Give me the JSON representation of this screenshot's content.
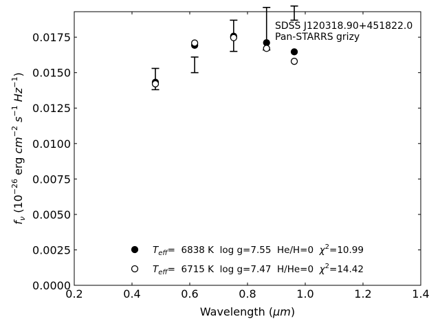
{
  "chart_data": {
    "type": "scatter",
    "xlabel_prefix": "Wavelength (",
    "xlabel_unit": "μm",
    "xlabel_suffix": ")",
    "ylabel_parts": [
      "f",
      "ν",
      " (10",
      "−26",
      " erg ",
      "cm",
      "−2",
      " ",
      "s",
      "−1",
      " ",
      "Hz",
      "−1",
      ")"
    ],
    "xlim": [
      0.2,
      1.4
    ],
    "ylim": [
      0.0,
      0.0193
    ],
    "x_ticks": [
      0.2,
      0.4,
      0.6,
      0.8,
      1.0,
      1.2,
      1.4
    ],
    "x_tick_labels": [
      "0.2",
      "0.4",
      "0.6",
      "0.8",
      "1.0",
      "1.2",
      "1.4"
    ],
    "y_ticks": [
      0.0,
      0.0025,
      0.005,
      0.0075,
      0.01,
      0.0125,
      0.015,
      0.0175
    ],
    "y_tick_labels": [
      "0.0000",
      "0.0025",
      "0.0050",
      "0.0075",
      "0.0100",
      "0.0125",
      "0.0150",
      "0.0175"
    ],
    "annotation": [
      "SDSS J120318.90+451822.0",
      "Pan-STARRS grizy"
    ],
    "observed": {
      "x": [
        0.481,
        0.617,
        0.752,
        0.866,
        0.962
      ],
      "y_low": [
        0.0138,
        0.015,
        0.0165,
        0.0166,
        0.0187
      ],
      "y_high": [
        0.0153,
        0.0161,
        0.0187,
        0.0196,
        0.0197
      ]
    },
    "series": [
      {
        "marker": "filled",
        "x": [
          0.481,
          0.617,
          0.752,
          0.866,
          0.962
        ],
        "y": [
          0.01432,
          0.01693,
          0.01757,
          0.01711,
          0.01647
        ],
        "legend": {
          "t": "T",
          "sub": "eff",
          "text1": "=  6838 K  log g=7.55  He/H=0  ",
          "chi": "χ",
          "sup": "2",
          "text2": "=10.99"
        }
      },
      {
        "marker": "open",
        "x": [
          0.481,
          0.617,
          0.752,
          0.866,
          0.962
        ],
        "y": [
          0.01421,
          0.01709,
          0.01747,
          0.01671,
          0.0158
        ],
        "legend": {
          "t": "T",
          "sub": "eff",
          "text1": "=  6715 K  log g=7.47  H/He=0  ",
          "chi": "χ",
          "sup": "2",
          "text2": "=14.42"
        }
      }
    ]
  }
}
